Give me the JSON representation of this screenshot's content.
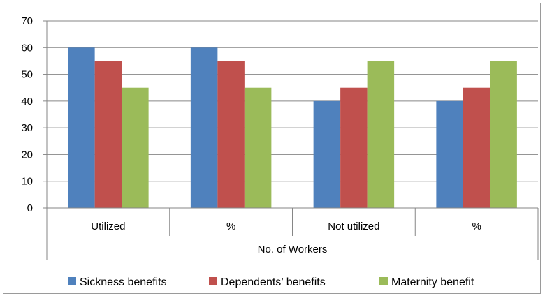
{
  "chart_data": {
    "type": "bar",
    "categories": [
      "Utilized",
      "%",
      "Not utilized",
      "%"
    ],
    "group_label": "No. of Workers",
    "series": [
      {
        "name": "Sickness benefits",
        "values": [
          60,
          60,
          40,
          40
        ],
        "color": "#4f81bd"
      },
      {
        "name": "Dependents’ benefits",
        "values": [
          55,
          55,
          45,
          45
        ],
        "color": "#c0504d"
      },
      {
        "name": "Maternity benefit",
        "values": [
          45,
          45,
          55,
          55
        ],
        "color": "#9bbb59"
      }
    ],
    "ylim": [
      0,
      70
    ],
    "yticks": [
      0,
      10,
      20,
      30,
      40,
      50,
      60,
      70
    ],
    "grid": true,
    "legend": "bottom"
  }
}
